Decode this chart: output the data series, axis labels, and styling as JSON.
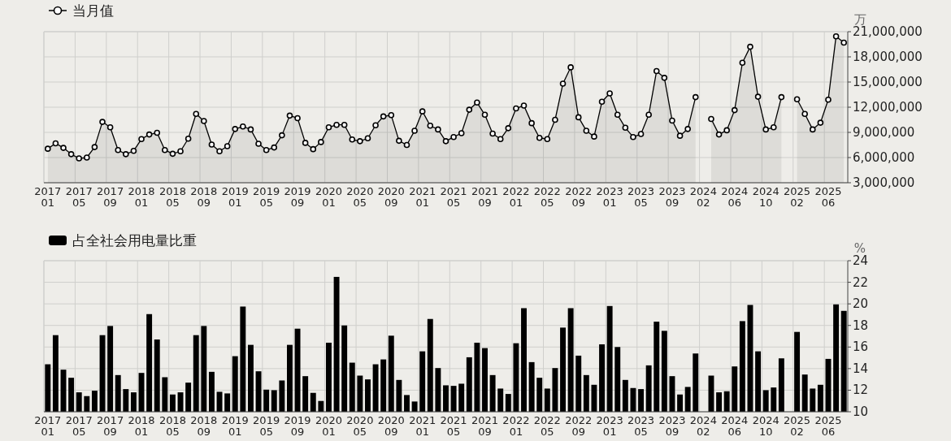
{
  "chart_data": [
    {
      "type": "area",
      "ylabel": "万",
      "legend": "top left",
      "grid": true,
      "marker": "circle",
      "categories": [
        "2017\n01",
        null,
        null,
        null,
        "2017\n05",
        null,
        null,
        null,
        "2017\n09",
        null,
        null,
        null,
        "2018\n01",
        null,
        null,
        null,
        "2018\n05",
        null,
        null,
        null,
        "2018\n09",
        null,
        null,
        null,
        "2019\n01",
        null,
        null,
        null,
        "2019\n05",
        null,
        null,
        null,
        "2019\n09",
        null,
        null,
        null,
        "2020\n01",
        null,
        null,
        null,
        "2020\n05",
        null,
        null,
        null,
        "2020\n09",
        null,
        null,
        null,
        "2021\n01",
        null,
        null,
        null,
        "2021\n05",
        null,
        null,
        null,
        "2021\n09",
        null,
        null,
        null,
        "2022\n01",
        null,
        null,
        null,
        "2022\n05",
        null,
        null,
        null,
        "2022\n09",
        null,
        null,
        null,
        "2023\n01",
        null,
        null,
        null,
        "2023\n05",
        null,
        null,
        null,
        "2023\n09",
        null,
        null,
        null,
        "2024\n02",
        null,
        null,
        null,
        "2024\n06",
        null,
        null,
        null,
        "2024\n10",
        null,
        null,
        null,
        "2025\n02",
        null,
        null,
        null,
        "2025\n06",
        null,
        null
      ],
      "ylim": [
        3000000,
        21000000
      ],
      "yticks": [
        {
          "value": 3000000,
          "label": "3,000,000"
        },
        {
          "value": 6000000,
          "label": "6,000,000"
        },
        {
          "value": 9000000,
          "label": "9,000,000"
        },
        {
          "value": 12000000,
          "label": "12,000,000"
        },
        {
          "value": 15000000,
          "label": "15,000,000"
        },
        {
          "value": 18000000,
          "label": "18,000,000"
        },
        {
          "value": 21000000,
          "label": "21,000,000"
        }
      ],
      "series": [
        {
          "name": "当月值",
          "color": "#000000",
          "values": [
            7050000,
            7700000,
            7150000,
            6400000,
            5900000,
            6000000,
            7250000,
            10250000,
            9600000,
            6900000,
            6400000,
            6800000,
            8200000,
            8750000,
            8950000,
            6900000,
            6450000,
            6750000,
            8250000,
            11200000,
            10350000,
            7550000,
            6750000,
            7350000,
            9400000,
            9700000,
            9350000,
            7650000,
            6900000,
            7200000,
            8650000,
            11000000,
            10700000,
            7750000,
            7000000,
            7850000,
            9600000,
            9900000,
            9900000,
            8150000,
            7950000,
            8300000,
            9850000,
            10900000,
            11050000,
            8000000,
            7500000,
            9200000,
            11500000,
            9800000,
            9350000,
            7950000,
            8450000,
            8900000,
            11700000,
            12550000,
            11100000,
            8850000,
            8200000,
            9500000,
            11850000,
            12200000,
            10100000,
            8350000,
            8200000,
            10500000,
            14800000,
            16750000,
            10800000,
            9200000,
            8500000,
            12650000,
            13650000,
            11100000,
            9550000,
            8450000,
            8800000,
            11100000,
            16300000,
            15500000,
            10400000,
            8600000,
            9400000,
            13200000,
            null,
            10600000,
            8750000,
            9250000,
            11650000,
            17300000,
            19200000,
            13250000,
            9350000,
            9600000,
            13200000,
            null,
            12950000,
            11200000,
            9350000,
            10150000,
            12900000,
            20450000,
            19700000
          ]
        }
      ]
    },
    {
      "type": "bar",
      "ylabel": "%",
      "legend": "top left",
      "grid": true,
      "categories": [
        "2017\n01",
        null,
        null,
        null,
        "2017\n05",
        null,
        null,
        null,
        "2017\n09",
        null,
        null,
        null,
        "2018\n01",
        null,
        null,
        null,
        "2018\n05",
        null,
        null,
        null,
        "2018\n09",
        null,
        null,
        null,
        "2019\n01",
        null,
        null,
        null,
        "2019\n05",
        null,
        null,
        null,
        "2019\n09",
        null,
        null,
        null,
        "2020\n01",
        null,
        null,
        null,
        "2020\n05",
        null,
        null,
        null,
        "2020\n09",
        null,
        null,
        null,
        "2021\n01",
        null,
        null,
        null,
        "2021\n05",
        null,
        null,
        null,
        "2021\n09",
        null,
        null,
        null,
        "2022\n01",
        null,
        null,
        null,
        "2022\n05",
        null,
        null,
        null,
        "2022\n09",
        null,
        null,
        null,
        "2023\n01",
        null,
        null,
        null,
        "2023\n05",
        null,
        null,
        null,
        "2023\n09",
        null,
        null,
        null,
        "2024\n02",
        null,
        null,
        null,
        "2024\n06",
        null,
        null,
        null,
        "2024\n10",
        null,
        null,
        null,
        "2025\n02",
        null,
        null,
        null,
        "2025\n06",
        null,
        null
      ],
      "ylim": [
        10,
        24
      ],
      "yticks": [
        10,
        12,
        14,
        16,
        18,
        20,
        22,
        24
      ],
      "series": [
        {
          "name": "占全社会用电量比重",
          "color": "#000000",
          "values": [
            14.4,
            17.1,
            13.9,
            13.15,
            11.8,
            11.45,
            11.95,
            17.1,
            17.95,
            13.4,
            12.1,
            11.8,
            13.6,
            19.05,
            16.7,
            13.2,
            11.6,
            11.8,
            12.7,
            17.1,
            17.95,
            13.7,
            11.85,
            11.7,
            15.15,
            19.75,
            16.2,
            13.75,
            12.05,
            12.0,
            12.9,
            16.2,
            17.7,
            13.3,
            11.75,
            11.0,
            16.4,
            22.5,
            18.0,
            14.55,
            13.35,
            13.0,
            14.4,
            14.85,
            17.05,
            12.95,
            11.55,
            10.95,
            15.6,
            18.6,
            14.05,
            12.45,
            12.4,
            12.6,
            15.05,
            16.4,
            15.9,
            13.4,
            12.15,
            11.65,
            16.35,
            19.6,
            14.6,
            13.15,
            12.15,
            14.05,
            17.8,
            19.6,
            15.2,
            13.4,
            12.5,
            16.25,
            19.8,
            16.0,
            12.95,
            12.2,
            12.1,
            14.3,
            18.35,
            17.5,
            13.3,
            11.6,
            12.3,
            15.4,
            null,
            13.35,
            11.8,
            11.9,
            14.2,
            18.4,
            19.9,
            15.6,
            12.0,
            12.25,
            14.95,
            null,
            17.4,
            13.45,
            12.15,
            12.5,
            14.9,
            19.95,
            19.35
          ]
        }
      ]
    }
  ]
}
